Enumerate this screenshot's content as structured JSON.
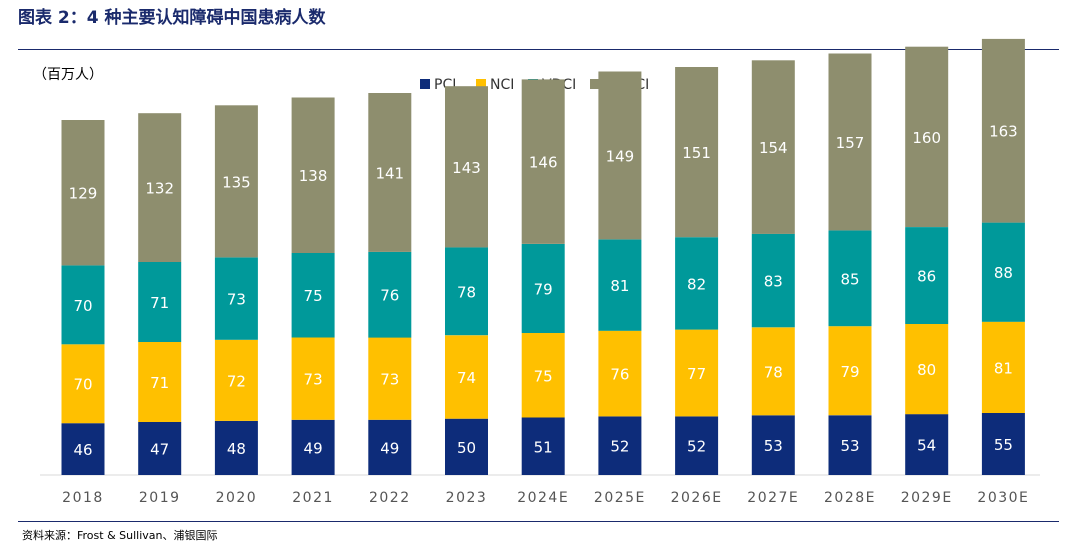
{
  "header": {
    "title": "图表 2：4 种主要认知障碍中国患病人数",
    "unit": "（百万人）"
  },
  "footer": {
    "source": "资料来源：Frost & Sullivan、浦银国际"
  },
  "chart_data": {
    "type": "bar",
    "stacked": true,
    "title": "图表 2：4 种主要认知障碍中国患病人数",
    "ylabel": "（百万人）",
    "xlabel": "",
    "ylim": [
      0,
      400
    ],
    "grid": false,
    "legend_position": "top-center",
    "categories": [
      "2018",
      "2019",
      "2020",
      "2021",
      "2022",
      "2023",
      "2024E",
      "2025E",
      "2026E",
      "2027E",
      "2028E",
      "2029E",
      "2030E"
    ],
    "series": [
      {
        "name": "PCI",
        "color": "#0d2c7a",
        "values": [
          46,
          47,
          48,
          49,
          49,
          50,
          51,
          52,
          52,
          53,
          53,
          54,
          55
        ]
      },
      {
        "name": "NCI",
        "color": "#ffc000",
        "values": [
          70,
          71,
          72,
          73,
          73,
          74,
          75,
          76,
          77,
          78,
          79,
          80,
          81
        ]
      },
      {
        "name": "VDCI",
        "color": "#00999a",
        "values": [
          70,
          71,
          73,
          75,
          76,
          78,
          79,
          81,
          82,
          83,
          85,
          86,
          88
        ]
      },
      {
        "name": "CDDCI",
        "color": "#8e8e6e",
        "values": [
          129,
          132,
          135,
          138,
          141,
          143,
          146,
          149,
          151,
          154,
          157,
          160,
          163
        ]
      }
    ]
  }
}
